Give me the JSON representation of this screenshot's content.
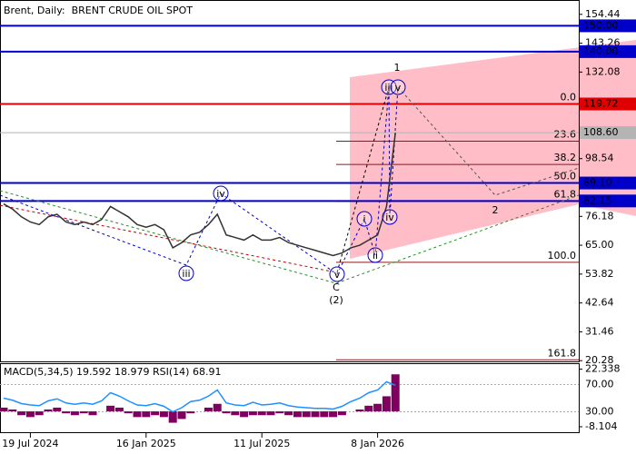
{
  "chart_data": [
    {
      "type": "line",
      "title": "Brent, Daily:  BRENT CRUDE OIL SPOT",
      "categories": [
        null,
        null,
        null,
        "19 Jul 2024",
        null,
        null,
        null,
        null,
        null,
        null,
        null,
        null,
        null,
        null,
        null,
        null,
        "16 Jan 2025",
        null,
        null,
        null,
        null,
        null,
        null,
        null,
        null,
        null,
        null,
        null,
        null,
        "11 Jul 2025",
        null,
        null,
        null,
        null,
        null,
        null,
        null,
        null,
        null,
        null,
        null,
        null,
        "8 Jan 2026",
        null,
        null
      ],
      "values": [
        81,
        79,
        76,
        74,
        73,
        76,
        77,
        74,
        73,
        74,
        73,
        75,
        80,
        78,
        76,
        73,
        72,
        73,
        71,
        64,
        66,
        69,
        70,
        73,
        77,
        69,
        68,
        67,
        69,
        67,
        67,
        68,
        66,
        65,
        64,
        63,
        62,
        61,
        62,
        64,
        65,
        67,
        69,
        80,
        108.6
      ],
      "color": "#333333",
      "ylim": [
        20,
        160
      ],
      "yticks": [
        154.44,
        143.26,
        132.08,
        98.54,
        76.18,
        {
          "value": 65,
          "label": "65.00"
        },
        53.82,
        42.64,
        31.46,
        20.28
      ],
      "levels": [
        {
          "value": 150,
          "label": "150.00",
          "color": "#0000c8"
        },
        {
          "value": 140,
          "label": "140.00",
          "color": "#0000c8"
        },
        {
          "value": 119.72,
          "label": "119.72",
          "color": "#e00000"
        },
        {
          "value": 108.6,
          "label": "108.60",
          "color": "#b4b4b4"
        },
        {
          "value": 89.1,
          "label": "89.10",
          "color": "#0000c8"
        },
        {
          "value": 82.15,
          "label": "82.15",
          "color": "#0000c8"
        }
      ],
      "fib_color": "#8b1a1a",
      "fib_levels": [
        {
          "value": 119.72,
          "label": "0.0"
        },
        {
          "value": 105.3,
          "label": "23.6"
        },
        {
          "value": 96.3,
          "label": "38.2"
        },
        {
          "value": 89.1,
          "label": "50.0"
        },
        {
          "value": 82,
          "label": "61.8"
        },
        {
          "value": 58.4,
          "label": "100.0"
        },
        {
          "value": 20.6,
          "label": "161.8"
        }
      ],
      "wave_labels": [
        "1",
        "2",
        "(2)",
        "C",
        "iii",
        "iv",
        "v",
        "i",
        "ii",
        "iii",
        "iv",
        "v"
      ]
    },
    {
      "type": "macd-rsi",
      "title": "MACD(5,34,5) 19.592 18.979 RSI(14) 68.91",
      "ylim": [
        -11,
        25
      ],
      "yticks": [
        22.338,
        -8.104
      ],
      "y2lim": [
        0,
        100
      ],
      "y2ticks": [
        {
          "value": 70,
          "label": "70.00"
        },
        {
          "value": 30,
          "label": "30.00"
        }
      ],
      "series": [
        {
          "type": "bar",
          "color": "#800060",
          "values": [
            2,
            1,
            -2,
            -3,
            -2,
            1,
            2,
            -1,
            -2,
            -1,
            -2,
            0,
            3,
            2,
            -1,
            -3,
            -3,
            -2,
            -3,
            -6,
            -4,
            -1,
            0,
            2,
            4,
            -1,
            -2,
            -3,
            -2,
            -2,
            -2,
            -1,
            -2,
            -3,
            -3,
            -3,
            -3,
            -3,
            -2,
            0,
            1,
            3,
            4,
            8,
            19.6
          ]
        },
        {
          "type": "line",
          "color": "#1e90ff",
          "axis": "y2",
          "values": [
            50,
            47,
            42,
            40,
            39,
            46,
            49,
            43,
            41,
            43,
            41,
            46,
            58,
            53,
            46,
            40,
            39,
            42,
            38,
            30,
            36,
            45,
            47,
            53,
            62,
            43,
            40,
            39,
            44,
            40,
            41,
            43,
            39,
            37,
            36,
            35,
            35,
            34,
            38,
            45,
            50,
            58,
            62,
            74,
            68.91
          ]
        }
      ]
    }
  ]
}
